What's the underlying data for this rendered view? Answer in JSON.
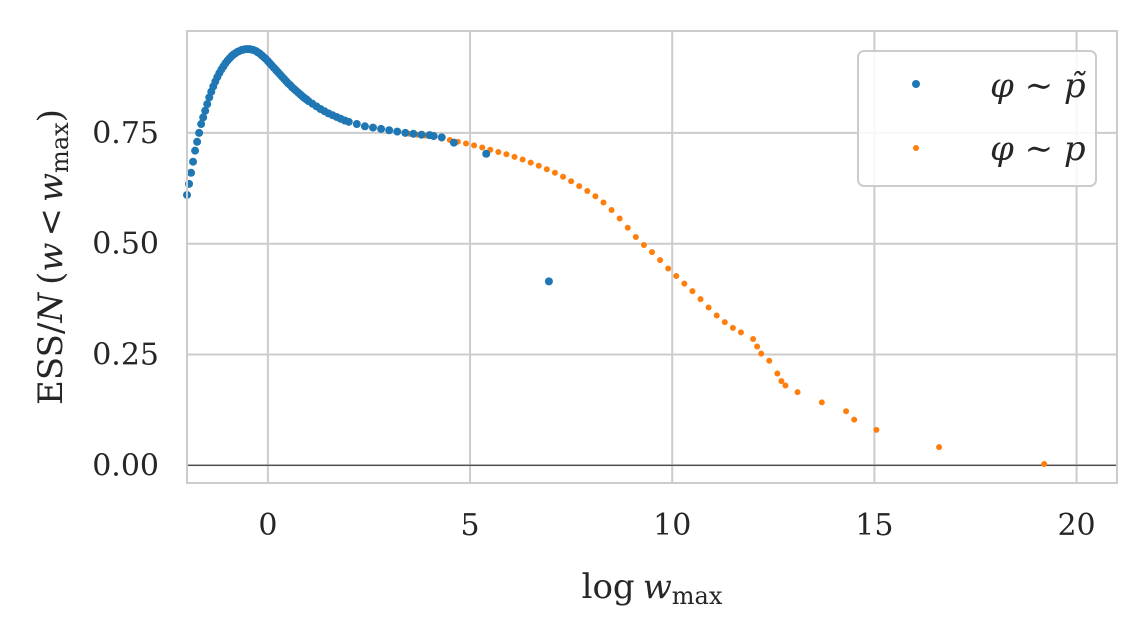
{
  "chart_data": {
    "type": "scatter",
    "xlabel": {
      "base": "log",
      "var": "w",
      "sub": "max"
    },
    "ylabel": {
      "prefix": "ESS/",
      "n": "N",
      "open": "(",
      "w": "w",
      "lt": "<",
      "w2": "w",
      "sub": "max",
      "close": ")"
    },
    "xlim": [
      -2.0,
      21.0
    ],
    "ylim": [
      -0.04,
      0.98
    ],
    "xticks": [
      0,
      5,
      10,
      15,
      20
    ],
    "xtick_labels": [
      "0",
      "5",
      "10",
      "15",
      "20"
    ],
    "yticks": [
      0.0,
      0.25,
      0.5,
      0.75
    ],
    "ytick_labels": [
      "0.00",
      "0.25",
      "0.50",
      "0.75"
    ],
    "grid": true,
    "hline_y": 0.0,
    "legend_position": "top-right",
    "series": [
      {
        "name": "φ ∼ p̃",
        "color": "#1f77b4",
        "points": [
          [
            -2.0,
            0.61
          ],
          [
            -1.95,
            0.635
          ],
          [
            -1.9,
            0.66
          ],
          [
            -1.85,
            0.685
          ],
          [
            -1.8,
            0.71
          ],
          [
            -1.75,
            0.73
          ],
          [
            -1.7,
            0.75
          ],
          [
            -1.65,
            0.77
          ],
          [
            -1.6,
            0.785
          ],
          [
            -1.55,
            0.8
          ],
          [
            -1.5,
            0.815
          ],
          [
            -1.45,
            0.83
          ],
          [
            -1.4,
            0.843
          ],
          [
            -1.35,
            0.855
          ],
          [
            -1.3,
            0.866
          ],
          [
            -1.25,
            0.876
          ],
          [
            -1.2,
            0.885
          ],
          [
            -1.15,
            0.893
          ],
          [
            -1.1,
            0.9
          ],
          [
            -1.05,
            0.907
          ],
          [
            -1.0,
            0.913
          ],
          [
            -0.95,
            0.918
          ],
          [
            -0.9,
            0.923
          ],
          [
            -0.85,
            0.927
          ],
          [
            -0.8,
            0.93
          ],
          [
            -0.75,
            0.933
          ],
          [
            -0.7,
            0.935
          ],
          [
            -0.65,
            0.937
          ],
          [
            -0.6,
            0.938
          ],
          [
            -0.55,
            0.939
          ],
          [
            -0.5,
            0.939
          ],
          [
            -0.45,
            0.939
          ],
          [
            -0.4,
            0.938
          ],
          [
            -0.35,
            0.937
          ],
          [
            -0.3,
            0.935
          ],
          [
            -0.25,
            0.932
          ],
          [
            -0.2,
            0.929
          ],
          [
            -0.15,
            0.925
          ],
          [
            -0.1,
            0.921
          ],
          [
            -0.05,
            0.917
          ],
          [
            0.0,
            0.912
          ],
          [
            0.05,
            0.907
          ],
          [
            0.1,
            0.902
          ],
          [
            0.15,
            0.897
          ],
          [
            0.2,
            0.892
          ],
          [
            0.25,
            0.887
          ],
          [
            0.3,
            0.882
          ],
          [
            0.35,
            0.877
          ],
          [
            0.4,
            0.872
          ],
          [
            0.45,
            0.867
          ],
          [
            0.5,
            0.862
          ],
          [
            0.55,
            0.858
          ],
          [
            0.6,
            0.853
          ],
          [
            0.65,
            0.849
          ],
          [
            0.7,
            0.845
          ],
          [
            0.75,
            0.841
          ],
          [
            0.8,
            0.837
          ],
          [
            0.85,
            0.833
          ],
          [
            0.9,
            0.829
          ],
          [
            0.95,
            0.826
          ],
          [
            1.0,
            0.822
          ],
          [
            1.1,
            0.816
          ],
          [
            1.2,
            0.81
          ],
          [
            1.3,
            0.804
          ],
          [
            1.4,
            0.799
          ],
          [
            1.5,
            0.794
          ],
          [
            1.6,
            0.79
          ],
          [
            1.7,
            0.786
          ],
          [
            1.8,
            0.782
          ],
          [
            1.9,
            0.778
          ],
          [
            2.0,
            0.775
          ],
          [
            2.2,
            0.77
          ],
          [
            2.4,
            0.765
          ],
          [
            2.6,
            0.762
          ],
          [
            2.8,
            0.759
          ],
          [
            3.0,
            0.756
          ],
          [
            3.2,
            0.753
          ],
          [
            3.4,
            0.75
          ],
          [
            3.6,
            0.748
          ],
          [
            3.8,
            0.746
          ],
          [
            4.0,
            0.745
          ],
          [
            4.1,
            0.743
          ],
          [
            4.3,
            0.74
          ],
          [
            4.6,
            0.728
          ],
          [
            5.4,
            0.703
          ],
          [
            6.95,
            0.415
          ]
        ]
      },
      {
        "name": "φ ∼ p",
        "color": "#ff7f0e",
        "points": [
          [
            3.5,
            0.748
          ],
          [
            3.7,
            0.746
          ],
          [
            3.9,
            0.744
          ],
          [
            4.1,
            0.741
          ],
          [
            4.3,
            0.737
          ],
          [
            4.5,
            0.734
          ],
          [
            4.7,
            0.73
          ],
          [
            4.9,
            0.726
          ],
          [
            5.1,
            0.722
          ],
          [
            5.3,
            0.717
          ],
          [
            5.5,
            0.712
          ],
          [
            5.7,
            0.707
          ],
          [
            5.9,
            0.702
          ],
          [
            6.1,
            0.696
          ],
          [
            6.3,
            0.69
          ],
          [
            6.5,
            0.683
          ],
          [
            6.7,
            0.676
          ],
          [
            6.9,
            0.668
          ],
          [
            7.1,
            0.66
          ],
          [
            7.3,
            0.651
          ],
          [
            7.5,
            0.641
          ],
          [
            7.7,
            0.63
          ],
          [
            7.9,
            0.619
          ],
          [
            8.1,
            0.607
          ],
          [
            8.3,
            0.593
          ],
          [
            8.5,
            0.576
          ],
          [
            8.7,
            0.557
          ],
          [
            8.9,
            0.536
          ],
          [
            9.1,
            0.515
          ],
          [
            9.3,
            0.497
          ],
          [
            9.5,
            0.481
          ],
          [
            9.7,
            0.463
          ],
          [
            9.9,
            0.444
          ],
          [
            10.1,
            0.427
          ],
          [
            10.3,
            0.41
          ],
          [
            10.5,
            0.393
          ],
          [
            10.7,
            0.375
          ],
          [
            10.9,
            0.356
          ],
          [
            11.1,
            0.338
          ],
          [
            11.3,
            0.323
          ],
          [
            11.5,
            0.31
          ],
          [
            11.7,
            0.3
          ],
          [
            12.0,
            0.285
          ],
          [
            12.1,
            0.268
          ],
          [
            12.2,
            0.252
          ],
          [
            12.4,
            0.236
          ],
          [
            12.6,
            0.207
          ],
          [
            12.7,
            0.19
          ],
          [
            12.8,
            0.18
          ],
          [
            13.1,
            0.165
          ],
          [
            13.7,
            0.142
          ],
          [
            14.3,
            0.122
          ],
          [
            14.5,
            0.103
          ],
          [
            15.05,
            0.08
          ],
          [
            16.6,
            0.041
          ],
          [
            19.2,
            0.003
          ]
        ]
      }
    ]
  }
}
